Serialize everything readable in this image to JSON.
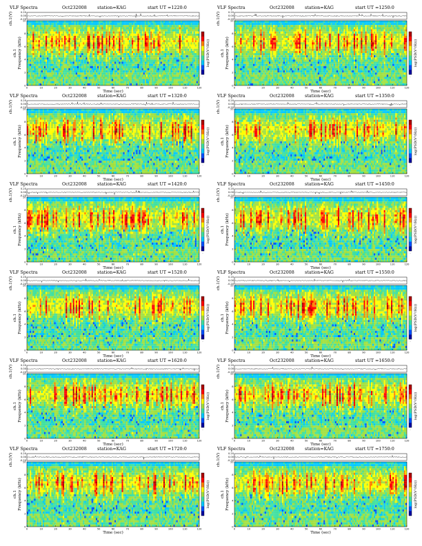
{
  "panel_common": {
    "title": "VLF Spectra",
    "station": "station=KAG",
    "ut_prefix": "start UT =",
    "amp_ylabel": "ch.1(V)",
    "spec_ylabel_channel": "ch.1",
    "spec_ylabel": "Frequency (kHz)",
    "xlabel": "Time (sec)",
    "colorbar_label": "log(PSD(V²/Hz))"
  },
  "panels": [
    {
      "date": "Oct232008",
      "start_ut": "1220:0"
    },
    {
      "date": "Oct232008",
      "start_ut": "1250:0"
    },
    {
      "date": "Oct232008",
      "start_ut": "1320:0"
    },
    {
      "date": "Oct232008",
      "start_ut": "1350:0"
    },
    {
      "date": "Oct232008",
      "start_ut": "1420:0"
    },
    {
      "date": "Oct232008",
      "start_ut": "1450:0"
    },
    {
      "date": "Oct232008",
      "start_ut": "1520:0"
    },
    {
      "date": "Oct232008",
      "start_ut": "1550:0"
    },
    {
      "date": "Oct232008",
      "start_ut": "1620:0"
    },
    {
      "date": "Oct232008",
      "start_ut": "1650:0"
    },
    {
      "date": "Oct232008",
      "start_ut": "1720:0"
    },
    {
      "date": "Oct232008",
      "start_ut": "1750:0"
    }
  ],
  "chart_data": {
    "type": "heatmap",
    "x_ticks": [
      "0",
      "10",
      "20",
      "30",
      "40",
      "50",
      "60",
      "70",
      "80",
      "90",
      "100",
      "110",
      "120"
    ],
    "xlim": [
      0,
      120
    ],
    "freq_ticks": [
      "0",
      "2",
      "4",
      "6",
      "8",
      "10"
    ],
    "ylim_khz": [
      0,
      10
    ],
    "amp_ticks": [
      "0.20",
      "0.00",
      "-0.20"
    ],
    "amp_ylim": [
      -0.2,
      0.2
    ],
    "colorbar_ticks": [
      "-",
      "-"
    ],
    "colormap": [
      "#0000a0",
      "#0050ff",
      "#00c8ff",
      "#40e0a0",
      "#a0e040",
      "#ffff00",
      "#ff8000",
      "#ff0000",
      "#b00000"
    ]
  }
}
